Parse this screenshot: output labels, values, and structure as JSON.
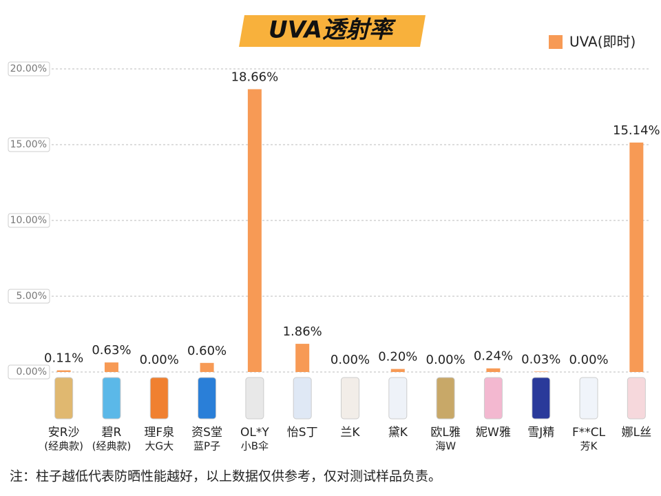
{
  "chart_data": {
    "type": "bar",
    "title": "UVA透射率",
    "categories": [
      [
        "安R沙",
        "(经典款)"
      ],
      [
        "碧R",
        "(经典款)"
      ],
      [
        "理F泉",
        "大G大"
      ],
      [
        "资S堂",
        "蓝P子"
      ],
      [
        "OL*Y",
        "小B伞"
      ],
      [
        "怡S丁"
      ],
      [
        "兰K"
      ],
      [
        "黛K"
      ],
      [
        "欧L雅",
        "海W"
      ],
      [
        "妮W雅"
      ],
      [
        "雪J精"
      ],
      [
        "F**CL",
        "芳K"
      ],
      [
        "娜L丝"
      ]
    ],
    "series": [
      {
        "name": "UVA(即时)",
        "color": "#f79a55",
        "values": [
          0.11,
          0.63,
          0.0,
          0.6,
          18.66,
          1.86,
          0.0,
          0.2,
          0.0,
          0.24,
          0.03,
          0.0,
          15.14
        ],
        "value_labels": [
          "0.11%",
          "0.63%",
          "0.00%",
          "0.60%",
          "18.66%",
          "1.86%",
          "0.00%",
          "0.20%",
          "0.00%",
          "0.24%",
          "0.03%",
          "0.00%",
          "15.14%"
        ]
      }
    ],
    "ylim": [
      0,
      20
    ],
    "yticks": [
      {
        "value": 0,
        "label": "0.00%"
      },
      {
        "value": 5,
        "label": "5.00%"
      },
      {
        "value": 10,
        "label": "10.00%"
      },
      {
        "value": 15,
        "label": "15.00%"
      },
      {
        "value": 20,
        "label": "20.00%"
      }
    ],
    "grid": true,
    "legend": "top-right",
    "note": "注：柱子越低代表防晒性能越好，以上数据仅供参考，仅对测试样品负责。"
  }
}
